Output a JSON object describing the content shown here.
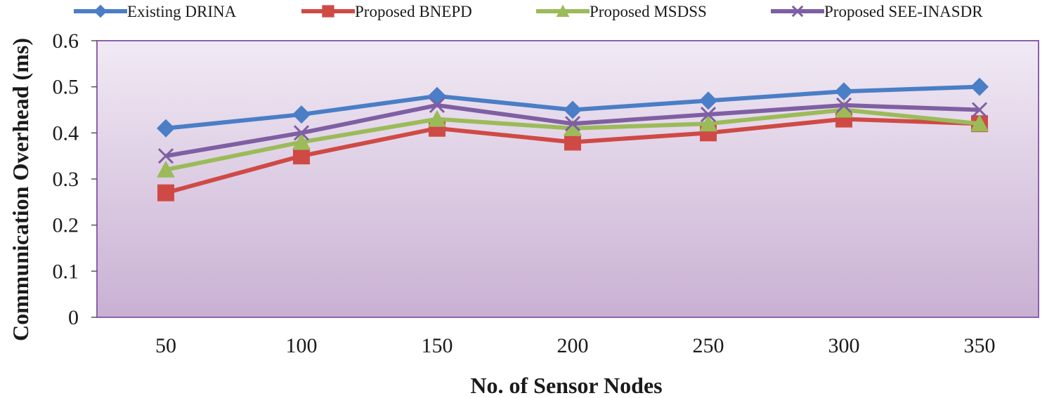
{
  "chart_data": {
    "type": "line",
    "title": "",
    "xlabel": "No. of  Sensor Nodes",
    "ylabel": "Communication Overhead (ms)",
    "categories": [
      "50",
      "100",
      "150",
      "200",
      "250",
      "300",
      "350"
    ],
    "ylim": [
      0,
      0.6
    ],
    "yticks": [
      0,
      0.1,
      0.2,
      0.3,
      0.4,
      0.5,
      0.6
    ],
    "ytick_labels": [
      "0",
      "0.1",
      "0.2",
      "0.3",
      "0.4",
      "0.5",
      "0.6"
    ],
    "grid": false,
    "legend_position": "top",
    "plot_background": [
      "#f1eaf4",
      "#c9b0d3"
    ],
    "series": [
      {
        "name": "Existing DRINA",
        "color": "#4a7ec6",
        "marker": "diamond",
        "values": [
          0.41,
          0.44,
          0.48,
          0.45,
          0.47,
          0.49,
          0.5
        ]
      },
      {
        "name": "Proposed BNEPD",
        "color": "#cf4a45",
        "marker": "square",
        "values": [
          0.27,
          0.35,
          0.41,
          0.38,
          0.4,
          0.43,
          0.42
        ]
      },
      {
        "name": "Proposed MSDSS",
        "color": "#9bbb59",
        "marker": "triangle",
        "values": [
          0.32,
          0.38,
          0.43,
          0.41,
          0.42,
          0.45,
          0.42
        ]
      },
      {
        "name": "Proposed SEE-INASDR",
        "color": "#7f5fa3",
        "marker": "x",
        "values": [
          0.35,
          0.4,
          0.46,
          0.42,
          0.44,
          0.46,
          0.45
        ]
      }
    ]
  }
}
